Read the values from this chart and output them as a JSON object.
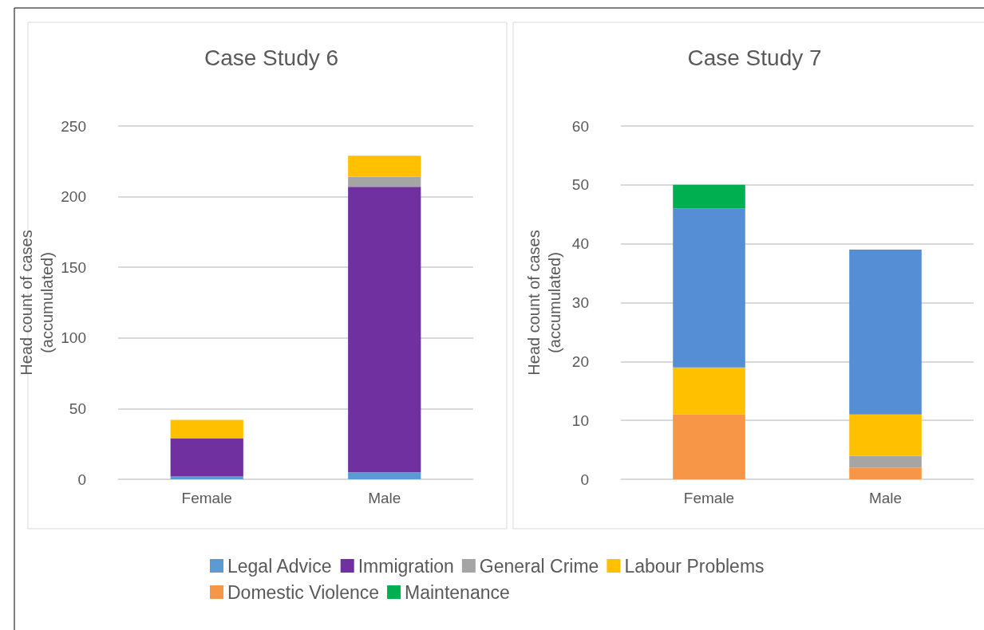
{
  "chart_data": [
    {
      "type": "bar",
      "title": "Case Study 6",
      "ylabel": "Head count of cases\n(accumulated)",
      "categories": [
        "Female",
        "Male"
      ],
      "stacked": true,
      "ylim": [
        0,
        250
      ],
      "yticks": [
        0,
        50,
        100,
        150,
        200,
        250
      ],
      "grid": "y",
      "legend": "bottom",
      "series": [
        {
          "name": "Legal Advice",
          "color": "#5b9bd5",
          "values": [
            2,
            5
          ]
        },
        {
          "name": "Immigration",
          "color": "#7030a0",
          "values": [
            27,
            202
          ]
        },
        {
          "name": "General Crime",
          "color": "#a5a5a5",
          "values": [
            0,
            7
          ]
        },
        {
          "name": "Labour Problems",
          "color": "#ffc000",
          "values": [
            13,
            15
          ]
        }
      ]
    },
    {
      "type": "bar",
      "title": "Case Study 7",
      "ylabel": "Head count of cases\n(accumulated)",
      "categories": [
        "Female",
        "Male"
      ],
      "stacked": true,
      "ylim": [
        0,
        60
      ],
      "yticks": [
        0,
        10,
        20,
        30,
        40,
        50,
        60
      ],
      "grid": "y",
      "legend": "bottom",
      "series": [
        {
          "name": "Domestic Violence",
          "color": "#f79646",
          "values": [
            11,
            2
          ]
        },
        {
          "name": "General Crime",
          "color": "#a5a5a5",
          "values": [
            0,
            2
          ]
        },
        {
          "name": "Labour Problems",
          "color": "#ffc000",
          "values": [
            8,
            7
          ]
        },
        {
          "name": "Legal Advice",
          "color": "#558ed5",
          "values": [
            27,
            28
          ]
        },
        {
          "name": "Maintenance",
          "color": "#00b050",
          "values": [
            4,
            0
          ]
        }
      ]
    }
  ]
}
